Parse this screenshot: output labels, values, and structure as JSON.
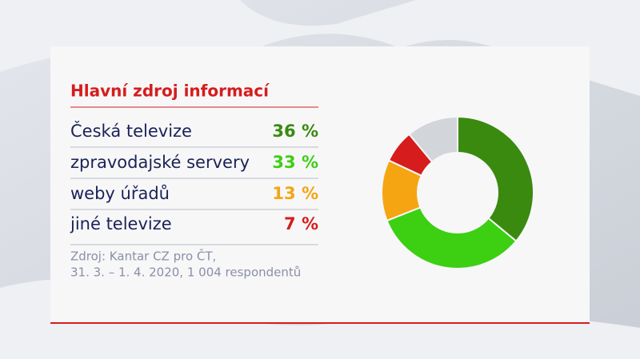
{
  "chart_data": {
    "type": "donut",
    "title": "Hlavní zdroj informací",
    "categories": [
      "Česká televize",
      "zpravodajské servery",
      "weby úřadů",
      "jiné televize",
      null
    ],
    "values": [
      36,
      33,
      13,
      7,
      11
    ],
    "value_labels": [
      "36 %",
      "33 %",
      "13 %",
      "7 %",
      null
    ],
    "colors": [
      "#3a8a10",
      "#3ccf12",
      "#f5a512",
      "#d61c1c",
      "#d2d5d9"
    ],
    "source": [
      "Zdroj: Kantar CZ pro ČT,",
      "31. 3. – 1. 4. 2020, 1 004 respondentů"
    ]
  }
}
